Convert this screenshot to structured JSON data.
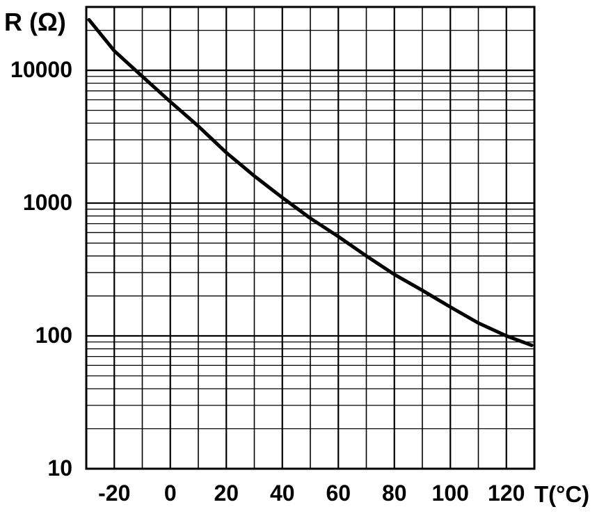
{
  "chart_data": {
    "type": "line",
    "title": "",
    "ylabel": "R (Ω)",
    "xlabel": "T(°C)",
    "y_scale": "log",
    "ylim": [
      10,
      30000
    ],
    "xlim": [
      -30,
      130
    ],
    "grid": true,
    "x_ticks": [
      -20,
      0,
      20,
      40,
      60,
      80,
      100,
      120
    ],
    "x_tick_labels": [
      "-20",
      "0",
      "20",
      "40",
      "60",
      "80",
      "100",
      "120"
    ],
    "y_ticks": [
      10,
      100,
      1000,
      10000
    ],
    "y_tick_labels": [
      "10",
      "100",
      "1000",
      "10000"
    ],
    "series": [
      {
        "x": [
          -29,
          -20,
          -10,
          0,
          10,
          20,
          30,
          40,
          50,
          60,
          70,
          80,
          90,
          100,
          110,
          120,
          129
        ],
        "y": [
          24000,
          14000,
          9000,
          5800,
          3800,
          2400,
          1600,
          1100,
          770,
          560,
          400,
          290,
          220,
          165,
          125,
          100,
          85
        ]
      }
    ]
  }
}
